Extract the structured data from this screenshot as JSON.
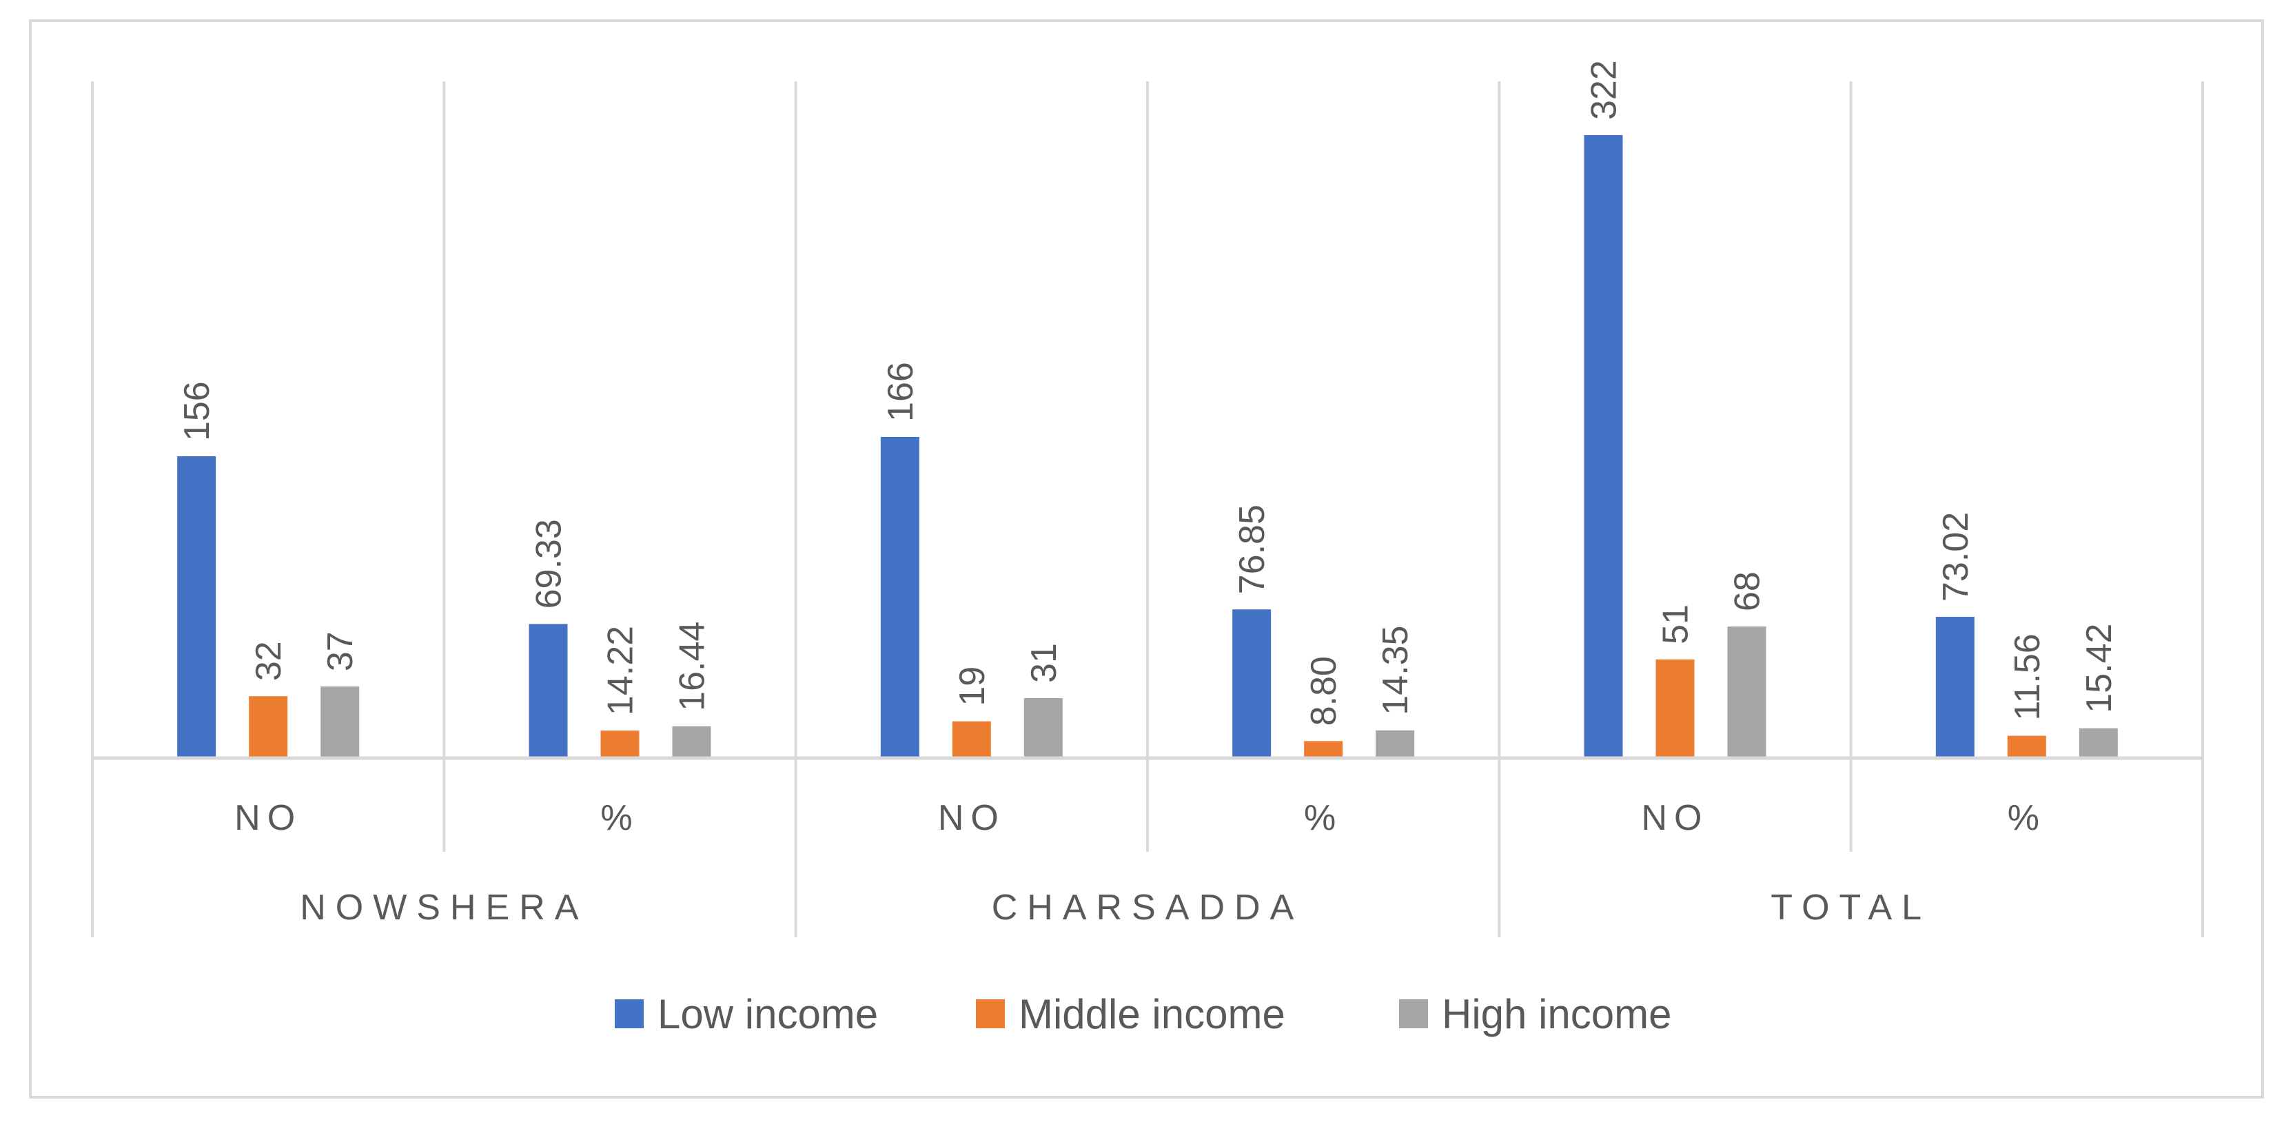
{
  "chart_data": {
    "type": "bar",
    "title": "",
    "xlabel": "",
    "ylabel": "",
    "ylim": [
      0,
      340
    ],
    "grid": false,
    "legend_position": "bottom",
    "groups": [
      {
        "label": "NOWSHERA",
        "categories": [
          "NO",
          "%"
        ]
      },
      {
        "label": "CHARSADDA",
        "categories": [
          "NO",
          "%"
        ]
      },
      {
        "label": "TOTAL",
        "categories": [
          "NO",
          "%"
        ]
      }
    ],
    "categories": [
      "NO",
      "%",
      "NO",
      "%",
      "NO",
      "%"
    ],
    "series": [
      {
        "name": "Low income",
        "color": "#4472c4",
        "values": [
          156,
          69.33,
          166,
          76.85,
          322,
          73.02
        ],
        "labels": [
          "156",
          "69.33",
          "166",
          "76.85",
          "322",
          "73.02"
        ]
      },
      {
        "name": "Middle income",
        "color": "#ed7d31",
        "values": [
          32,
          14.22,
          19,
          8.8,
          51,
          11.56
        ],
        "labels": [
          "32",
          "14.22",
          "19",
          "8.80",
          "51",
          "11.56"
        ]
      },
      {
        "name": "High income",
        "color": "#a5a5a5",
        "values": [
          37,
          16.44,
          31,
          14.35,
          68,
          15.42
        ],
        "labels": [
          "37",
          "16.44",
          "31",
          "14.35",
          "68",
          "15.42"
        ]
      }
    ]
  }
}
